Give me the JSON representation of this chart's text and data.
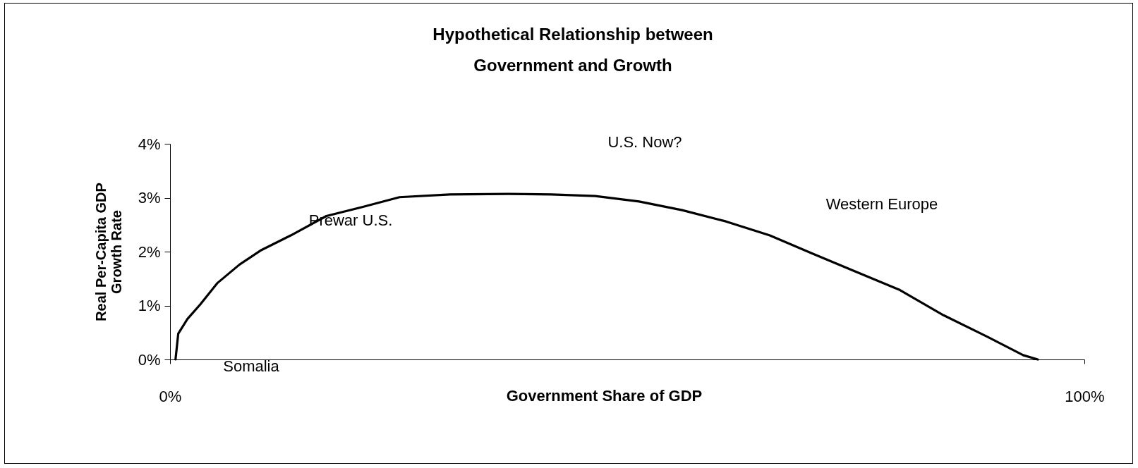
{
  "chart_data": {
    "type": "line",
    "title": "Hypothetical Relationship between\nGovernment and Growth",
    "xlabel": "Government Share of GDP",
    "ylabel": "Real Per-Capita GDP\nGrowth Rate",
    "x": [
      0.6,
      0.9,
      1.9,
      3.3,
      5.2,
      7.6,
      10,
      13.2,
      17.1,
      21.1,
      25.1,
      30.6,
      37,
      41.7,
      46.5,
      51.3,
      56,
      60.8,
      65.6,
      70.3,
      75.1,
      79.8,
      84.6,
      89.4,
      93.3,
      94.9
    ],
    "series": [
      {
        "color": "#000000",
        "values": [
          0,
          0.48,
          0.75,
          1.02,
          1.42,
          1.76,
          2.03,
          2.3,
          2.66,
          2.83,
          3.01,
          3.06,
          3.07,
          3.06,
          3.03,
          2.93,
          2.77,
          2.56,
          2.3,
          1.96,
          1.62,
          1.29,
          0.82,
          0.42,
          0.08,
          0
        ]
      }
    ],
    "xlim": [
      0,
      100
    ],
    "xticks": [
      {
        "value": 0,
        "label": "0%"
      },
      {
        "value": 100,
        "label": "100%"
      }
    ],
    "ylim": [
      0,
      4
    ],
    "yticks": [
      {
        "value": 0,
        "label": "0%"
      },
      {
        "value": 1,
        "label": "1%"
      },
      {
        "value": 2,
        "label": "2%"
      },
      {
        "value": 3,
        "label": "3%"
      },
      {
        "value": 4,
        "label": "4%"
      }
    ],
    "annotations": [
      "U.S. Now?",
      "Western Europe",
      "Prewar U.S.",
      "Somalia"
    ],
    "grid": false,
    "marker": "none",
    "line_style": "solid"
  }
}
